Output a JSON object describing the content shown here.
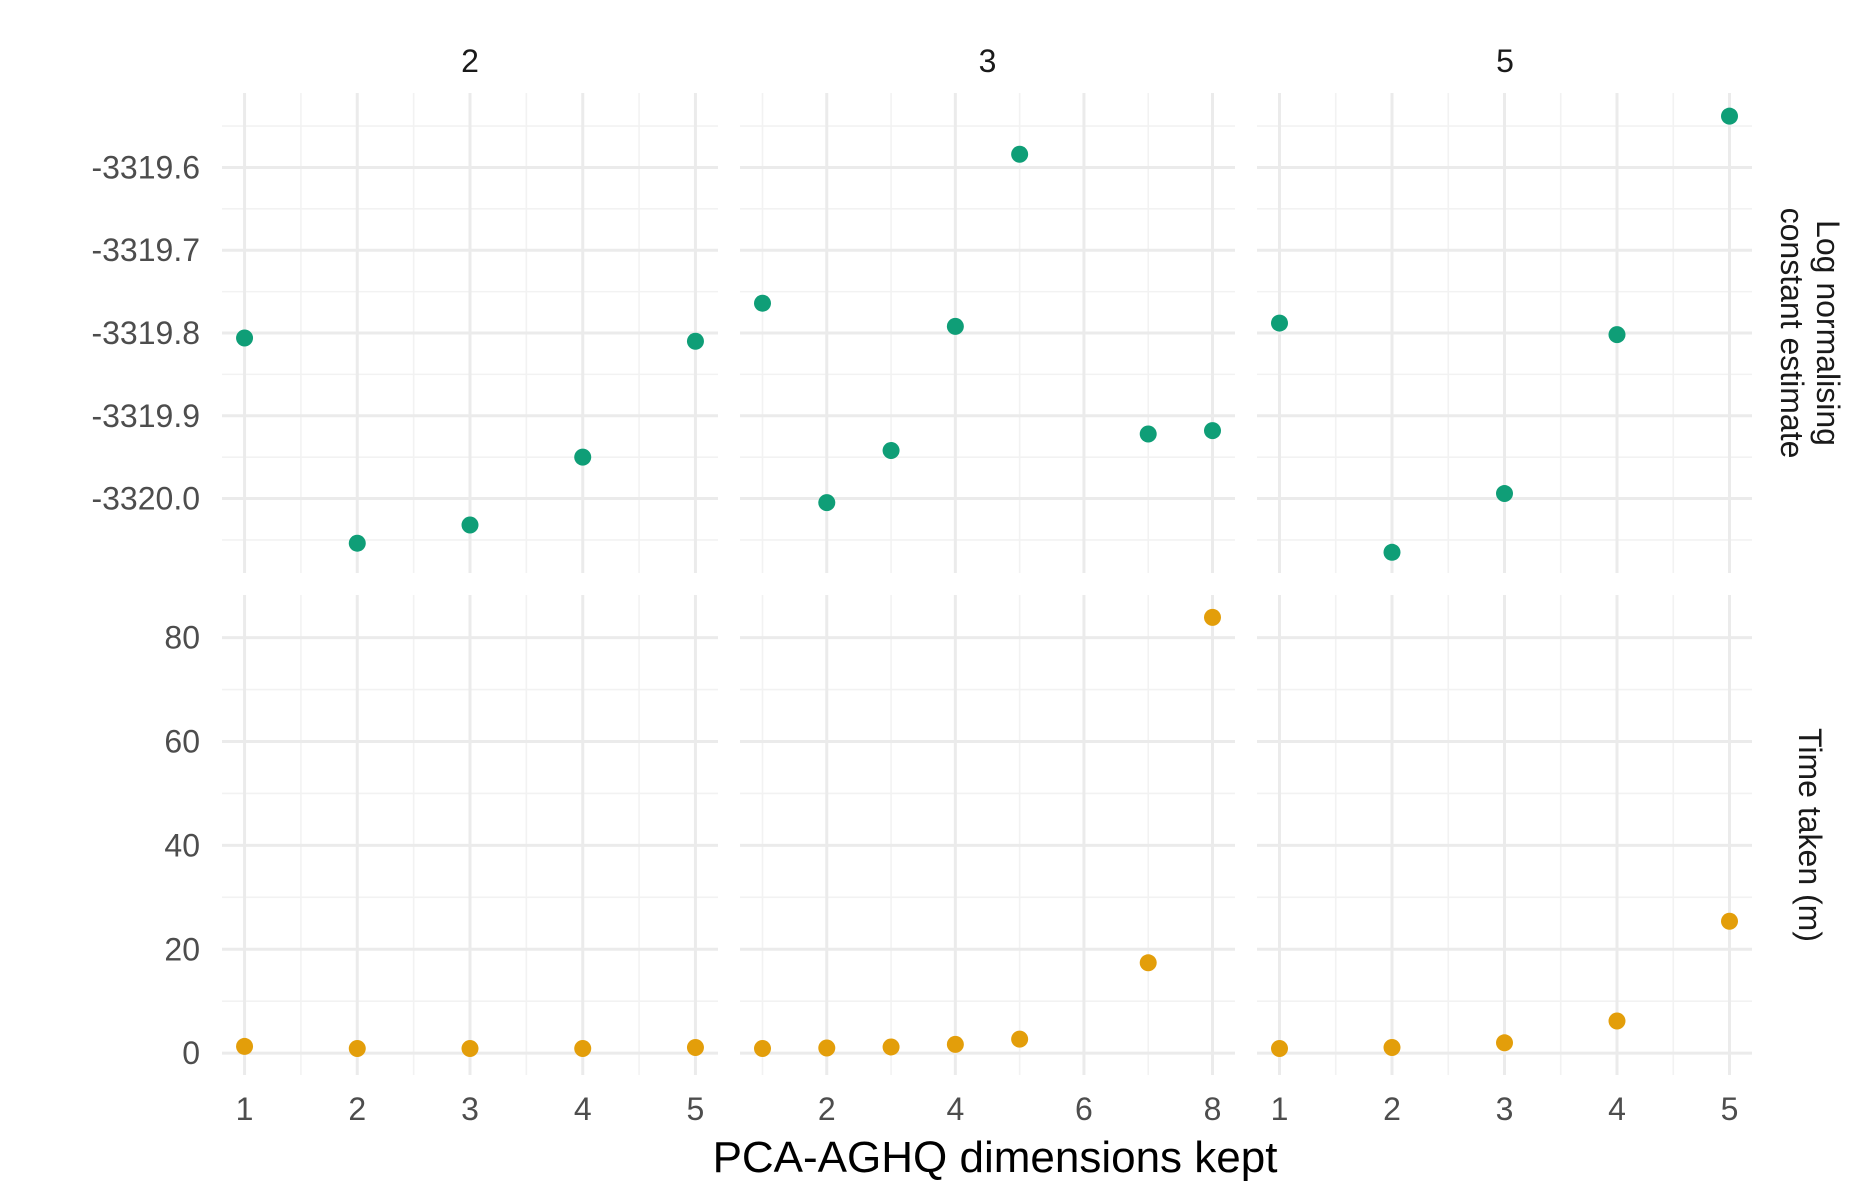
{
  "chart_data": {
    "type": "scatter",
    "facet_columns": [
      "2",
      "3",
      "5"
    ],
    "facet_rows": [
      "Log normalising\nconstant estimate",
      "Time taken (m)"
    ],
    "xlabel": "PCA-AGHQ dimensions kept",
    "colors": {
      "log_normalising": "#0f9e77",
      "time_taken": "#e39e0a",
      "grid": "#ebebeb"
    },
    "panels": [
      {
        "column": "2",
        "x_ticks": [
          1,
          2,
          3,
          4,
          5
        ],
        "xlim": [
          0.8,
          5.2
        ],
        "log_normalising": {
          "x": [
            1,
            2,
            3,
            4,
            5
          ],
          "y": [
            -3319.806,
            -3320.054,
            -3320.032,
            -3319.95,
            -3319.81
          ]
        },
        "time_taken": {
          "x": [
            1,
            2,
            3,
            4,
            5
          ],
          "y": [
            1.3,
            0.9,
            0.9,
            0.9,
            1.1
          ]
        }
      },
      {
        "column": "3",
        "x_ticks": [
          2,
          4,
          6,
          8
        ],
        "xlim": [
          0.65,
          8.35
        ],
        "log_normalising": {
          "x": [
            1,
            2,
            3,
            4,
            5,
            7,
            8
          ],
          "y": [
            -3319.764,
            -3320.005,
            -3319.942,
            -3319.792,
            -3319.584,
            -3319.922,
            -3319.918
          ]
        },
        "time_taken": {
          "x": [
            1,
            2,
            3,
            4,
            5,
            7,
            8
          ],
          "y": [
            0.9,
            1.0,
            1.2,
            1.7,
            2.7,
            17.4,
            83.9
          ]
        }
      },
      {
        "column": "5",
        "x_ticks": [
          1,
          2,
          3,
          4,
          5
        ],
        "xlim": [
          0.8,
          5.2
        ],
        "log_normalising": {
          "x": [
            1,
            2,
            3,
            4,
            5
          ],
          "y": [
            -3319.788,
            -3320.065,
            -3319.994,
            -3319.802,
            -3319.538
          ]
        },
        "time_taken": {
          "x": [
            1,
            2,
            3,
            4,
            5
          ],
          "y": [
            0.9,
            1.1,
            2.0,
            6.2,
            25.4
          ]
        }
      }
    ],
    "y_axes": {
      "log_normalising": {
        "ylim": [
          -3320.09,
          -3319.51
        ],
        "ticks": [
          -3319.6,
          -3319.7,
          -3319.8,
          -3319.9,
          -3320.0
        ],
        "tick_labels": [
          "-3319.6",
          "-3319.7",
          "-3319.8",
          "-3319.9",
          "-3320.0"
        ]
      },
      "time_taken": {
        "ylim": [
          -4.2,
          88.2
        ],
        "ticks": [
          0,
          20,
          40,
          60,
          80
        ],
        "tick_labels": [
          "0",
          "20",
          "40",
          "60",
          "80"
        ]
      }
    },
    "grid": true,
    "legend": "none"
  }
}
